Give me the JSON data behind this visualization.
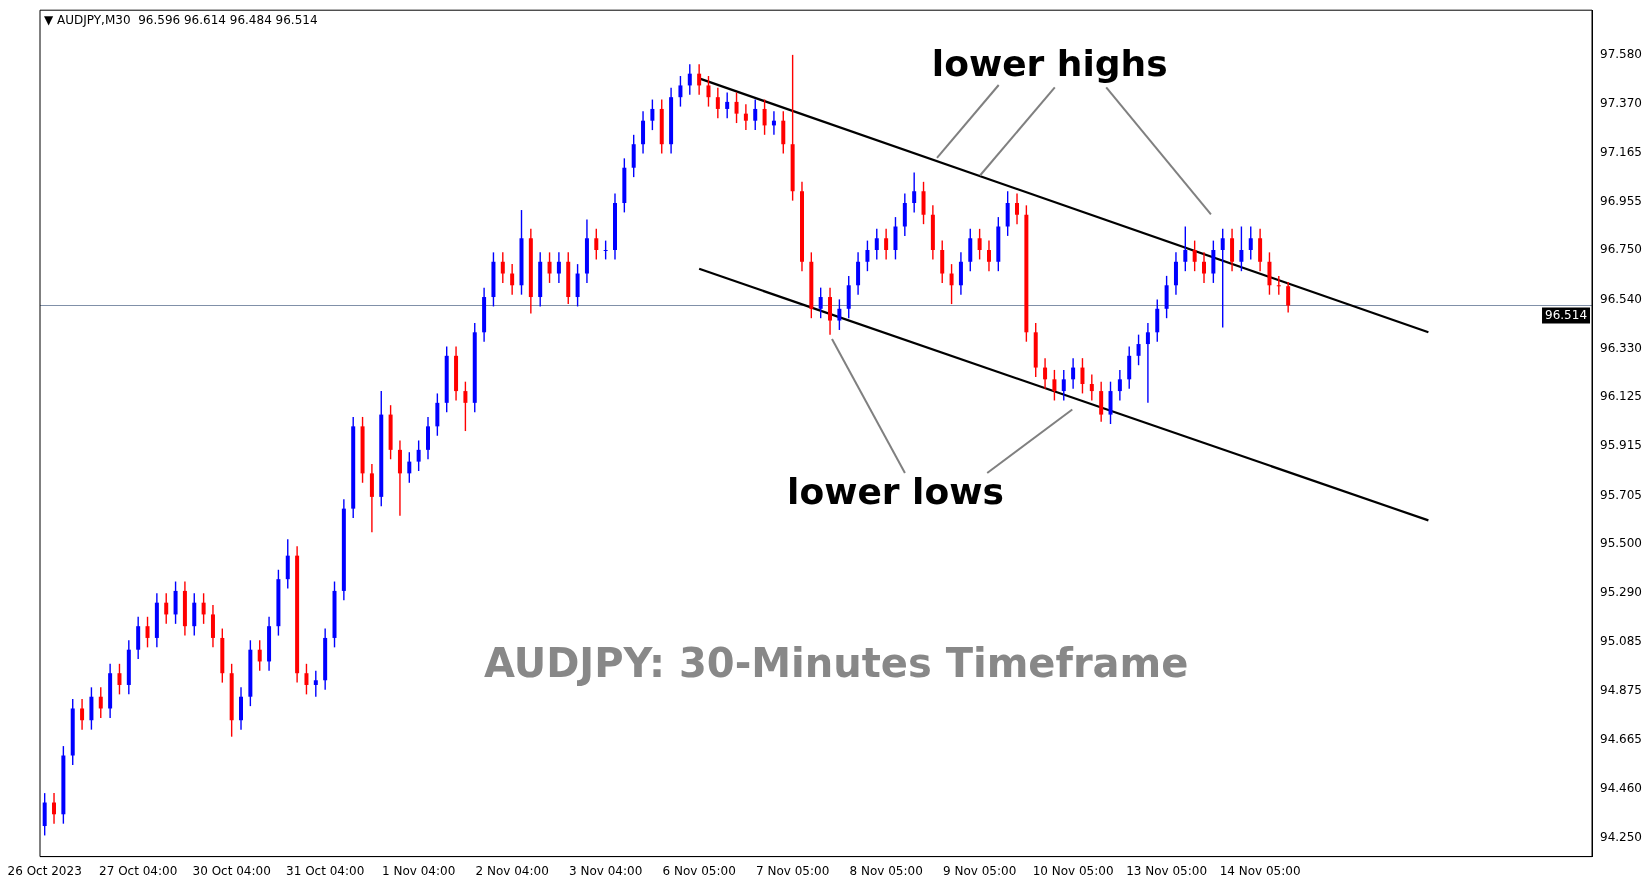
{
  "chart_data": {
    "type": "candlestick",
    "title": "AUDJPY: 30-Minutes Timeframe",
    "annotations": [
      "▼ AUDJPY,M30  96.596 96.614 96.484 96.514",
      {
        "text": "lower highs",
        "x": "9 Nov 05:00",
        "y": 97.065
      },
      "lower lows"
    ],
    "categories": [
      "26 Oct 2023",
      null,
      null,
      null,
      null,
      null,
      null,
      null,
      null,
      null,
      "27 Oct 04:00",
      null,
      null,
      null,
      null,
      null,
      null,
      null,
      null,
      null,
      "30 Oct 04:00",
      null,
      null,
      null,
      null,
      null,
      null,
      null,
      null,
      null,
      "31 Oct 04:00",
      null,
      null,
      null,
      null,
      null,
      null,
      null,
      null,
      null,
      "1 Nov 04:00",
      null,
      null,
      null,
      null,
      null,
      null,
      null,
      null,
      null,
      "2 Nov 04:00",
      null,
      null,
      null,
      null,
      null,
      null,
      null,
      null,
      null,
      "3 Nov 04:00",
      null,
      null,
      null,
      null,
      null,
      null,
      null,
      null,
      null,
      "6 Nov 05:00",
      null,
      null,
      null,
      null,
      null,
      null,
      null,
      null,
      null,
      "7 Nov 05:00",
      null,
      null,
      null,
      null,
      null,
      null,
      null,
      null,
      null,
      "8 Nov 05:00",
      null,
      null,
      null,
      null,
      null,
      null,
      null,
      null,
      null,
      "9 Nov 05:00",
      null,
      null,
      null,
      null,
      null,
      null,
      null,
      null,
      null,
      "10 Nov 05:00",
      null,
      null,
      null,
      null,
      null,
      null,
      null,
      null,
      null,
      "13 Nov 05:00",
      null,
      null,
      null,
      null,
      null,
      null,
      null,
      null,
      null,
      "14 Nov 05:00",
      null,
      null,
      null,
      null,
      null,
      null,
      null,
      null,
      null,
      null,
      null,
      null,
      null,
      null,
      null,
      null,
      null,
      null,
      null,
      null,
      null,
      null,
      null,
      null,
      null,
      null,
      null,
      null,
      null,
      null,
      null,
      null,
      null,
      null,
      null
    ],
    "ohlc": [
      [
        94.3,
        94.44,
        94.26,
        94.4
      ],
      [
        94.4,
        94.44,
        94.31,
        94.35
      ],
      [
        94.35,
        94.64,
        94.31,
        94.6
      ],
      [
        94.6,
        94.84,
        94.56,
        94.8
      ],
      [
        94.8,
        94.84,
        94.71,
        94.75
      ],
      [
        94.75,
        94.89,
        94.71,
        94.85
      ],
      [
        94.85,
        94.89,
        94.76,
        94.8
      ],
      [
        94.8,
        94.99,
        94.76,
        94.95
      ],
      [
        94.95,
        94.99,
        94.86,
        94.9
      ],
      [
        94.9,
        95.09,
        94.86,
        95.05
      ],
      [
        95.05,
        95.19,
        95.01,
        95.15
      ],
      [
        95.15,
        95.19,
        95.06,
        95.1
      ],
      [
        95.1,
        95.29,
        95.06,
        95.25
      ],
      [
        95.25,
        95.29,
        95.16,
        95.2
      ],
      [
        95.2,
        95.34,
        95.16,
        95.3
      ],
      [
        95.3,
        95.34,
        95.11,
        95.15
      ],
      [
        95.15,
        95.29,
        95.11,
        95.25
      ],
      [
        95.25,
        95.29,
        95.16,
        95.2
      ],
      [
        95.2,
        95.24,
        95.06,
        95.1
      ],
      [
        95.1,
        95.14,
        94.91,
        94.95
      ],
      [
        94.95,
        94.99,
        94.68,
        94.75
      ],
      [
        94.75,
        94.89,
        94.71,
        94.85
      ],
      [
        94.85,
        95.09,
        94.81,
        95.05
      ],
      [
        95.05,
        95.09,
        94.96,
        95.0
      ],
      [
        95.0,
        95.19,
        94.96,
        95.15
      ],
      [
        95.15,
        95.39,
        95.11,
        95.35
      ],
      [
        95.35,
        95.52,
        95.31,
        95.45
      ],
      [
        95.45,
        95.49,
        94.91,
        94.95
      ],
      [
        94.95,
        94.99,
        94.86,
        94.9
      ],
      [
        94.9,
        94.96,
        94.85,
        94.92
      ],
      [
        94.92,
        95.14,
        94.88,
        95.1
      ],
      [
        95.1,
        95.34,
        95.06,
        95.3
      ],
      [
        95.3,
        95.69,
        95.26,
        95.65
      ],
      [
        95.65,
        96.04,
        95.61,
        96.0
      ],
      [
        96.0,
        96.04,
        95.76,
        95.8
      ],
      [
        95.8,
        95.84,
        95.55,
        95.7
      ],
      [
        95.7,
        96.15,
        95.66,
        96.05
      ],
      [
        96.05,
        96.09,
        95.86,
        95.9
      ],
      [
        95.9,
        95.94,
        95.62,
        95.8
      ],
      [
        95.8,
        95.89,
        95.76,
        95.85
      ],
      [
        95.85,
        95.94,
        95.81,
        95.9
      ],
      [
        95.9,
        96.04,
        95.86,
        96.0
      ],
      [
        96.0,
        96.14,
        95.96,
        96.1
      ],
      [
        96.1,
        96.34,
        96.06,
        96.3
      ],
      [
        96.3,
        96.34,
        96.11,
        96.15
      ],
      [
        96.15,
        96.19,
        95.98,
        96.1
      ],
      [
        96.1,
        96.44,
        96.06,
        96.4
      ],
      [
        96.4,
        96.59,
        96.36,
        96.55
      ],
      [
        96.55,
        96.74,
        96.51,
        96.7
      ],
      [
        96.7,
        96.74,
        96.61,
        96.65
      ],
      [
        96.65,
        96.69,
        96.56,
        96.6
      ],
      [
        96.6,
        96.92,
        96.56,
        96.8
      ],
      [
        96.8,
        96.84,
        96.48,
        96.55
      ],
      [
        96.55,
        96.74,
        96.51,
        96.7
      ],
      [
        96.7,
        96.74,
        96.61,
        96.65
      ],
      [
        96.65,
        96.74,
        96.61,
        96.7
      ],
      [
        96.7,
        96.74,
        96.52,
        96.55
      ],
      [
        96.55,
        96.69,
        96.51,
        96.65
      ],
      [
        96.65,
        96.88,
        96.61,
        96.8
      ],
      [
        96.8,
        96.84,
        96.71,
        96.75
      ],
      [
        96.75,
        96.79,
        96.71,
        96.75
      ],
      [
        96.75,
        96.99,
        96.71,
        96.95
      ],
      [
        96.95,
        97.14,
        96.91,
        97.1
      ],
      [
        97.1,
        97.24,
        97.06,
        97.2
      ],
      [
        97.2,
        97.34,
        97.16,
        97.3
      ],
      [
        97.3,
        97.39,
        97.26,
        97.35
      ],
      [
        97.35,
        97.39,
        97.16,
        97.2
      ],
      [
        97.2,
        97.44,
        97.16,
        97.4
      ],
      [
        97.4,
        97.49,
        97.36,
        97.45
      ],
      [
        97.45,
        97.54,
        97.41,
        97.5
      ],
      [
        97.5,
        97.54,
        97.41,
        97.45
      ],
      [
        97.45,
        97.49,
        97.36,
        97.4
      ],
      [
        97.4,
        97.44,
        97.31,
        97.35
      ],
      [
        97.35,
        97.42,
        97.31,
        97.38
      ],
      [
        97.38,
        97.42,
        97.29,
        97.33
      ],
      [
        97.33,
        97.37,
        97.26,
        97.3
      ],
      [
        97.3,
        97.39,
        97.26,
        97.35
      ],
      [
        97.35,
        97.39,
        97.24,
        97.28
      ],
      [
        97.28,
        97.34,
        97.24,
        97.3
      ],
      [
        97.3,
        97.34,
        97.16,
        97.2
      ],
      [
        97.2,
        97.58,
        96.96,
        97.0
      ],
      [
        97.0,
        97.04,
        96.66,
        96.7
      ],
      [
        96.7,
        96.74,
        96.46,
        96.5
      ],
      [
        96.5,
        96.59,
        96.46,
        96.55
      ],
      [
        96.55,
        96.59,
        96.39,
        96.45
      ],
      [
        96.45,
        96.54,
        96.41,
        96.5
      ],
      [
        96.5,
        96.64,
        96.46,
        96.6
      ],
      [
        96.6,
        96.74,
        96.56,
        96.7
      ],
      [
        96.7,
        96.79,
        96.66,
        96.75
      ],
      [
        96.75,
        96.84,
        96.71,
        96.8
      ],
      [
        96.8,
        96.84,
        96.71,
        96.75
      ],
      [
        96.75,
        96.89,
        96.71,
        96.85
      ],
      [
        96.85,
        96.99,
        96.81,
        96.95
      ],
      [
        96.95,
        97.08,
        96.91,
        97.0
      ],
      [
        97.0,
        97.04,
        96.86,
        96.9
      ],
      [
        96.9,
        96.94,
        96.71,
        96.75
      ],
      [
        96.75,
        96.79,
        96.61,
        96.65
      ],
      [
        96.65,
        96.69,
        96.52,
        96.6
      ],
      [
        96.6,
        96.74,
        96.56,
        96.7
      ],
      [
        96.7,
        96.84,
        96.66,
        96.8
      ],
      [
        96.8,
        96.84,
        96.71,
        96.75
      ],
      [
        96.75,
        96.79,
        96.66,
        96.7
      ],
      [
        96.7,
        96.89,
        96.66,
        96.85
      ],
      [
        96.85,
        97.0,
        96.81,
        96.95
      ],
      [
        96.95,
        96.99,
        96.86,
        96.9
      ],
      [
        96.9,
        96.94,
        96.36,
        96.4
      ],
      [
        96.4,
        96.44,
        96.21,
        96.25
      ],
      [
        96.25,
        96.29,
        96.16,
        96.2
      ],
      [
        96.2,
        96.24,
        96.11,
        96.15
      ],
      [
        96.15,
        96.24,
        96.11,
        96.2
      ],
      [
        96.2,
        96.29,
        96.16,
        96.25
      ],
      [
        96.25,
        96.29,
        96.14,
        96.18
      ],
      [
        96.18,
        96.22,
        96.11,
        96.15
      ],
      [
        96.15,
        96.19,
        96.02,
        96.05
      ],
      [
        96.05,
        96.19,
        96.01,
        96.15
      ],
      [
        96.15,
        96.24,
        96.11,
        96.2
      ],
      [
        96.2,
        96.34,
        96.16,
        96.3
      ],
      [
        96.3,
        96.39,
        96.26,
        96.35
      ],
      [
        96.35,
        96.44,
        96.1,
        96.4
      ],
      [
        96.4,
        96.54,
        96.36,
        96.5
      ],
      [
        96.5,
        96.64,
        96.46,
        96.6
      ],
      [
        96.6,
        96.74,
        96.56,
        96.7
      ],
      [
        96.7,
        96.85,
        96.66,
        96.75
      ],
      [
        96.75,
        96.79,
        96.66,
        96.7
      ],
      [
        96.7,
        96.74,
        96.61,
        96.65
      ],
      [
        96.65,
        96.79,
        96.61,
        96.75
      ],
      [
        96.75,
        96.84,
        96.42,
        96.8
      ],
      [
        96.8,
        96.84,
        96.66,
        96.7
      ],
      [
        96.7,
        96.85,
        96.66,
        96.75
      ],
      [
        96.75,
        96.85,
        96.71,
        96.8
      ],
      [
        96.8,
        96.84,
        96.66,
        96.7
      ],
      [
        96.7,
        96.74,
        96.56,
        96.6
      ],
      [
        96.6,
        96.64,
        96.56,
        96.596
      ],
      [
        96.596,
        96.614,
        96.484,
        96.514
      ],
      null,
      null,
      null,
      null,
      null,
      null,
      null,
      null,
      null,
      null,
      null,
      null,
      null,
      null,
      null,
      null,
      null,
      null,
      null,
      null,
      null,
      null,
      null,
      null,
      null,
      null,
      null,
      null,
      null,
      null,
      null,
      null
    ],
    "colors": [
      "#0000ff",
      "#ff0000",
      "#0000ff",
      "#0000ff",
      "#ff0000",
      "#0000ff",
      "#ff0000",
      "#0000ff",
      "#ff0000",
      "#0000ff",
      "#0000ff",
      "#ff0000",
      "#0000ff",
      "#ff0000",
      "#0000ff",
      "#ff0000",
      "#0000ff",
      "#ff0000",
      "#ff0000",
      "#ff0000",
      "#ff0000",
      "#0000ff",
      "#0000ff",
      "#ff0000",
      "#0000ff",
      "#0000ff",
      "#0000ff",
      "#ff0000",
      "#ff0000",
      "#0000ff",
      "#0000ff",
      "#0000ff",
      "#0000ff",
      "#0000ff",
      "#ff0000",
      "#ff0000",
      "#0000ff",
      "#ff0000",
      "#ff0000",
      "#0000ff",
      "#0000ff",
      "#0000ff",
      "#0000ff",
      "#0000ff",
      "#ff0000",
      "#ff0000",
      "#0000ff",
      "#0000ff",
      "#0000ff",
      "#ff0000",
      "#ff0000",
      "#0000ff",
      "#ff0000",
      "#0000ff",
      "#ff0000",
      "#0000ff",
      "#ff0000",
      "#0000ff",
      "#0000ff",
      "#ff0000",
      "#0000ff",
      "#0000ff",
      "#0000ff",
      "#0000ff",
      "#0000ff",
      "#0000ff",
      "#ff0000",
      "#0000ff",
      "#0000ff",
      "#0000ff",
      "#ff0000",
      "#ff0000",
      "#ff0000",
      "#0000ff",
      "#ff0000",
      "#ff0000",
      "#0000ff",
      "#ff0000",
      "#0000ff",
      "#ff0000",
      "#ff0000",
      "#ff0000",
      "#ff0000",
      "#0000ff",
      "#ff0000",
      "#0000ff",
      "#0000ff",
      "#0000ff",
      "#0000ff",
      "#0000ff",
      "#ff0000",
      "#0000ff",
      "#0000ff",
      "#0000ff",
      "#ff0000",
      "#ff0000",
      "#ff0000",
      "#ff0000",
      "#0000ff",
      "#0000ff",
      "#ff0000",
      "#ff0000",
      "#0000ff",
      "#0000ff",
      "#ff0000",
      "#ff0000",
      "#ff0000",
      "#ff0000",
      "#ff0000",
      "#0000ff",
      "#0000ff",
      "#ff0000",
      "#ff0000",
      "#ff0000",
      "#0000ff",
      "#0000ff",
      "#0000ff",
      "#0000ff",
      "#0000ff",
      "#0000ff",
      "#0000ff",
      "#0000ff",
      "#0000ff",
      "#ff0000",
      "#ff0000",
      "#0000ff",
      "#0000ff",
      "#ff0000",
      "#0000ff",
      "#0000ff",
      "#ff0000",
      "#ff0000",
      "#ff0000",
      "#ff0000",
      null,
      null,
      null,
      null,
      null,
      null,
      null,
      null,
      null,
      null,
      null,
      null,
      null,
      null,
      null,
      null,
      null,
      null,
      null,
      null,
      null,
      null,
      null,
      null,
      null,
      null,
      null,
      null,
      null,
      null,
      null,
      null
    ],
    "series": [
      {
        "type": "line",
        "color": "#000000",
        "values": [
          null,
          null,
          null,
          null,
          null,
          null,
          null,
          null,
          null,
          null,
          null,
          null,
          null,
          null,
          null,
          null,
          null,
          null,
          null,
          null,
          null,
          null,
          null,
          null,
          null,
          null,
          null,
          null,
          null,
          null,
          null,
          null,
          null,
          null,
          null,
          null,
          null,
          null,
          null,
          null,
          null,
          null,
          null,
          null,
          null,
          null,
          null,
          null,
          null,
          null,
          null,
          null,
          null,
          null,
          null,
          null,
          null,
          null,
          null,
          null,
          null,
          null,
          null,
          null,
          null,
          null,
          null,
          null,
          null,
          null,
          97.48,
          null,
          null,
          null,
          null,
          null,
          null,
          null,
          null,
          null,
          null,
          null,
          null,
          null,
          null,
          null,
          null,
          null,
          null,
          null,
          null,
          null,
          null,
          null,
          null,
          null,
          null,
          null,
          null,
          null,
          null,
          null,
          null,
          null,
          null,
          null,
          null,
          null,
          null,
          null,
          null,
          null,
          null,
          null,
          null,
          null,
          null,
          null,
          null,
          null,
          null,
          null,
          null,
          null,
          null,
          null,
          null,
          null,
          null,
          null,
          null,
          null,
          null,
          null,
          null,
          null,
          null,
          null,
          null,
          null,
          null,
          null,
          null,
          null,
          null,
          null,
          null,
          null,
          96.4,
          null,
          null,
          null,
          null,
          null,
          null,
          null,
          null,
          null,
          null,
          null,
          null,
          null,
          null,
          null,
          null,
          null
        ]
      },
      {
        "type": "line",
        "color": "#000000",
        "values": [
          null,
          null,
          null,
          null,
          null,
          null,
          null,
          null,
          null,
          null,
          null,
          null,
          null,
          null,
          null,
          null,
          null,
          null,
          null,
          null,
          null,
          null,
          null,
          null,
          null,
          null,
          null,
          null,
          null,
          null,
          null,
          null,
          null,
          null,
          null,
          null,
          null,
          null,
          null,
          null,
          null,
          null,
          null,
          null,
          null,
          null,
          null,
          null,
          null,
          null,
          null,
          null,
          null,
          null,
          null,
          null,
          null,
          null,
          null,
          null,
          null,
          null,
          null,
          null,
          null,
          null,
          null,
          null,
          null,
          null,
          96.67,
          null,
          null,
          null,
          null,
          null,
          null,
          null,
          null,
          null,
          null,
          null,
          null,
          null,
          null,
          null,
          null,
          null,
          null,
          null,
          null,
          null,
          null,
          null,
          null,
          null,
          null,
          null,
          null,
          null,
          null,
          null,
          null,
          null,
          null,
          null,
          null,
          null,
          null,
          null,
          null,
          null,
          null,
          null,
          null,
          null,
          null,
          null,
          null,
          null,
          null,
          null,
          null,
          null,
          null,
          null,
          null,
          null,
          null,
          null,
          null,
          null,
          null,
          null,
          null,
          null,
          null,
          null,
          null,
          null,
          null,
          null,
          null,
          null,
          null,
          null,
          null,
          null,
          95.6,
          null,
          null,
          null,
          null,
          null,
          null,
          null,
          null,
          null,
          null,
          null,
          null,
          null,
          null,
          null,
          null,
          null
        ]
      }
    ],
    "ref_lines": [
      {
        "axis": "y",
        "value": 96.514,
        "label": "96.514",
        "color": "#8090a8"
      }
    ],
    "ylim": [
      94.17,
      97.77
    ],
    "yticks": [
      {
        "value": 94.25,
        "label": "94.250"
      },
      {
        "value": 94.46,
        "label": "94.460"
      },
      {
        "value": 94.665,
        "label": "94.665"
      },
      {
        "value": 94.875,
        "label": "94.875"
      },
      {
        "value": 95.085,
        "label": "95.085"
      },
      {
        "value": 95.29,
        "label": "95.290"
      },
      {
        "value": 95.5,
        "label": "95.500"
      },
      {
        "value": 95.705,
        "label": "95.705"
      },
      {
        "value": 95.915,
        "label": "95.915"
      },
      {
        "value": 96.125,
        "label": "96.125"
      },
      {
        "value": 96.33,
        "label": "96.330"
      },
      {
        "value": 96.54,
        "label": "96.540"
      },
      {
        "value": 96.75,
        "label": "96.750"
      },
      {
        "value": 96.955,
        "label": "96.955"
      },
      {
        "value": 97.165,
        "label": "97.165"
      },
      {
        "value": 97.37,
        "label": "97.370"
      },
      {
        "value": 97.58,
        "label": "97.580"
      }
    ],
    "grid": false,
    "legend": false
  }
}
